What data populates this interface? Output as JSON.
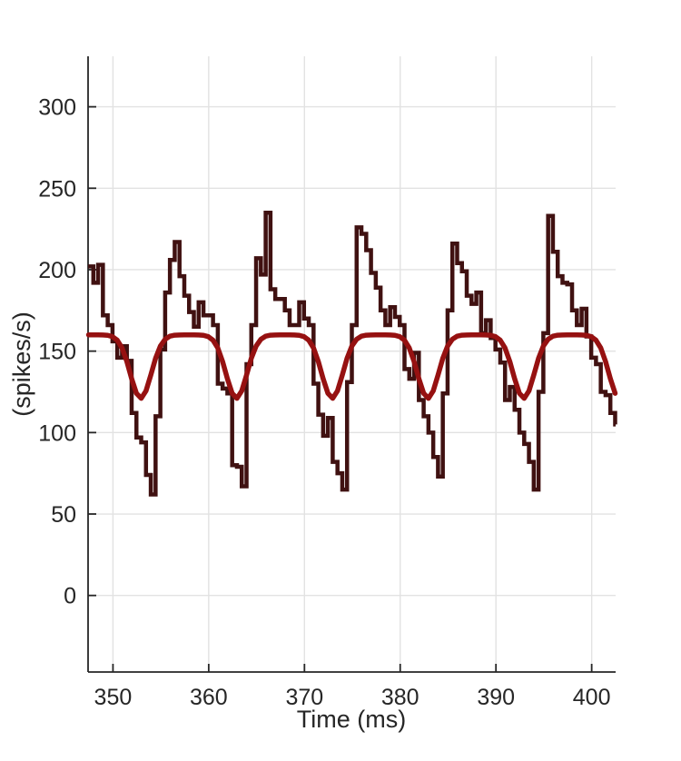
{
  "figure": {
    "xlabel": "Time (ms)",
    "ylabel": "(spikes/s)",
    "background_color": "#ffffff",
    "axis_color": "#262626",
    "grid_color": "#e2e2e2",
    "tick_label_color": "#262626"
  },
  "chart_data": {
    "type": "line",
    "title": "",
    "xlabel": "Time (ms)",
    "ylabel": "(spikes/s)",
    "xlim": [
      347.4,
      402.5
    ],
    "ylim": [
      -47,
      331
    ],
    "x_ticks": [
      350,
      360,
      370,
      380,
      390,
      400
    ],
    "y_ticks": [
      0,
      50,
      100,
      150,
      200,
      250,
      300
    ],
    "grid": true,
    "box": false,
    "legend": "none",
    "series": [
      {
        "name": "psth-histogram",
        "style": "stairs",
        "color": "#401111",
        "line_width": 4.5,
        "bin_start": 347.45,
        "bin_width": 0.5,
        "clip_start": 347.4,
        "clip_end": 402.5,
        "values": [
          202,
          192,
          203,
          172,
          166,
          156,
          146,
          153,
          144,
          112,
          97,
          94,
          74,
          62,
          110,
          151,
          186,
          206,
          217,
          196,
          184,
          174,
          165,
          180,
          172,
          172,
          166,
          130,
          127,
          124,
          80,
          79,
          67,
          142,
          166,
          207,
          197,
          235,
          188,
          182,
          182,
          175,
          166,
          166,
          180,
          170,
          166,
          130,
          111,
          98,
          109,
          82,
          75,
          65,
          131,
          166,
          226,
          222,
          212,
          198,
          189,
          175,
          166,
          177,
          171,
          166,
          139,
          133,
          149,
          120,
          110,
          100,
          85,
          73,
          124,
          175,
          216,
          204,
          199,
          184,
          179,
          186,
          161,
          169,
          158,
          151,
          143,
          120,
          128,
          114,
          100,
          93,
          82,
          65,
          125,
          161,
          233,
          211,
          196,
          192,
          191,
          175,
          166,
          176,
          159,
          146,
          142,
          125,
          123,
          112,
          105
        ]
      },
      {
        "name": "model-rate",
        "style": "smooth",
        "color": "#961111",
        "line_width": 5.5,
        "t0": 347.45,
        "dt": 0.5,
        "period_ms": 10,
        "dip_centers_mod10": 2.9,
        "values": [
          160,
          160,
          160,
          159.9,
          159.7,
          158.9,
          156.7,
          151.9,
          143.6,
          133.1,
          124.1,
          121,
          125.6,
          135.3,
          145.6,
          153.1,
          157.3,
          159.2,
          159.8,
          159.9,
          160,
          160,
          160,
          159.9,
          159.7,
          158.9,
          156.7,
          151.9,
          143.6,
          133.1,
          124.1,
          121,
          125.6,
          135.3,
          145.6,
          153.1,
          157.3,
          159.2,
          159.8,
          159.9,
          160,
          160,
          160,
          159.9,
          159.7,
          158.9,
          156.7,
          151.9,
          143.6,
          133.1,
          124.1,
          121,
          125.6,
          135.3,
          145.6,
          153.1,
          157.3,
          159.2,
          159.8,
          159.9,
          160,
          160,
          160,
          159.9,
          159.7,
          158.9,
          156.7,
          151.9,
          143.6,
          133.1,
          124.1,
          121,
          125.6,
          135.3,
          145.6,
          153.1,
          157.3,
          159.2,
          159.8,
          159.9,
          160,
          160,
          160,
          159.9,
          159.7,
          158.9,
          156.7,
          151.9,
          143.6,
          133.1,
          124.1,
          121,
          125.6,
          135.3,
          145.6,
          153.1,
          157.3,
          159.2,
          159.8,
          159.9,
          160,
          160,
          160,
          159.9,
          159.7,
          158.9,
          156.7,
          151.9,
          143.6,
          133.1,
          124.1
        ]
      }
    ]
  }
}
